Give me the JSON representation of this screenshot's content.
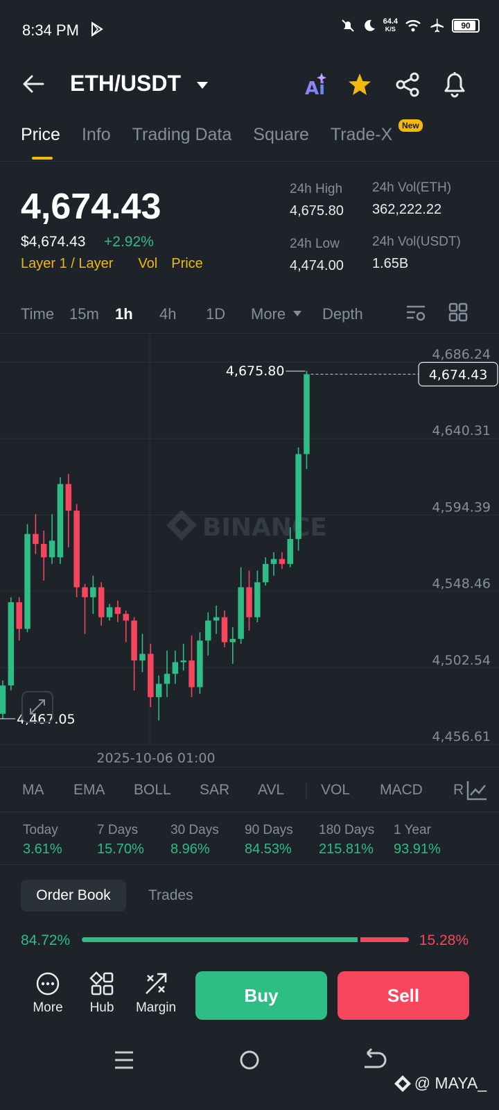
{
  "status_bar": {
    "time": "8:34 PM",
    "speed_value": "64.4",
    "speed_unit": "K/S",
    "battery": "90"
  },
  "header": {
    "pair": "ETH/USDT"
  },
  "tabs": [
    {
      "label": "Price"
    },
    {
      "label": "Info"
    },
    {
      "label": "Trading Data"
    },
    {
      "label": "Square"
    },
    {
      "label": "Trade-X"
    }
  ],
  "new_badge": "New",
  "ticker": {
    "last_price": "4,674.43",
    "usd_price": "$4,674.43",
    "change": "+2.92%",
    "tags": [
      "Layer 1 / Layer",
      "Vol",
      "Price"
    ],
    "high_label": "24h High",
    "high_value": "4,675.80",
    "low_label": "24h Low",
    "low_value": "4,474.00",
    "vol_eth_label": "24h Vol(ETH)",
    "vol_eth_value": "362,222.22",
    "vol_usdt_label": "24h Vol(USDT)",
    "vol_usdt_value": "1.65B"
  },
  "intervals": [
    "Time",
    "15m",
    "1h",
    "4h",
    "1D",
    "More",
    "Depth"
  ],
  "chart_data": {
    "type": "candlestick",
    "y_ticks": [
      "4,686.24",
      "4,640.31",
      "4,594.39",
      "4,548.46",
      "4,502.54",
      "4,456.61"
    ],
    "ylim": [
      4456.61,
      4686.24
    ],
    "x_label": "2025-10-06 01:00",
    "high_marker": "4,675.80",
    "low_marker": "4,467.05",
    "last_price_tag": "4,674.43",
    "watermark": "BINANCE",
    "candles": [
      {
        "o": 4470,
        "c": 4487,
        "h": 4490,
        "l": 4467
      },
      {
        "o": 4487,
        "c": 4537,
        "h": 4540,
        "l": 4484
      },
      {
        "o": 4537,
        "c": 4521,
        "h": 4540,
        "l": 4514
      },
      {
        "o": 4521,
        "c": 4578,
        "h": 4584,
        "l": 4519
      },
      {
        "o": 4578,
        "c": 4572,
        "h": 4590,
        "l": 4566
      },
      {
        "o": 4572,
        "c": 4564,
        "h": 4580,
        "l": 4550
      },
      {
        "o": 4564,
        "c": 4574,
        "h": 4590,
        "l": 4560
      },
      {
        "o": 4564,
        "c": 4608,
        "h": 4612,
        "l": 4560
      },
      {
        "o": 4608,
        "c": 4592,
        "h": 4614,
        "l": 4570
      },
      {
        "o": 4592,
        "c": 4546,
        "h": 4596,
        "l": 4540
      },
      {
        "o": 4546,
        "c": 4540,
        "h": 4548,
        "l": 4518
      },
      {
        "o": 4540,
        "c": 4546,
        "h": 4553,
        "l": 4530
      },
      {
        "o": 4546,
        "c": 4528,
        "h": 4549,
        "l": 4523
      },
      {
        "o": 4528,
        "c": 4534,
        "h": 4536,
        "l": 4526
      },
      {
        "o": 4534,
        "c": 4530,
        "h": 4538,
        "l": 4525
      },
      {
        "o": 4530,
        "c": 4526,
        "h": 4532,
        "l": 4513
      },
      {
        "o": 4526,
        "c": 4502,
        "h": 4528,
        "l": 4484
      },
      {
        "o": 4502,
        "c": 4506,
        "h": 4518,
        "l": 4495
      },
      {
        "o": 4506,
        "c": 4480,
        "h": 4512,
        "l": 4474
      },
      {
        "o": 4480,
        "c": 4488,
        "h": 4493,
        "l": 4466
      },
      {
        "o": 4488,
        "c": 4494,
        "h": 4508,
        "l": 4480
      },
      {
        "o": 4494,
        "c": 4501,
        "h": 4508,
        "l": 4488
      },
      {
        "o": 4501,
        "c": 4502,
        "h": 4512,
        "l": 4496
      },
      {
        "o": 4502,
        "c": 4486,
        "h": 4517,
        "l": 4480
      },
      {
        "o": 4486,
        "c": 4514,
        "h": 4519,
        "l": 4482
      },
      {
        "o": 4514,
        "c": 4526,
        "h": 4531,
        "l": 4505
      },
      {
        "o": 4526,
        "c": 4528,
        "h": 4535,
        "l": 4518
      },
      {
        "o": 4528,
        "c": 4513,
        "h": 4532,
        "l": 4510
      },
      {
        "o": 4513,
        "c": 4515,
        "h": 4522,
        "l": 4500
      },
      {
        "o": 4515,
        "c": 4546,
        "h": 4558,
        "l": 4512
      },
      {
        "o": 4546,
        "c": 4528,
        "h": 4556,
        "l": 4520
      },
      {
        "o": 4528,
        "c": 4549,
        "h": 4556,
        "l": 4525
      },
      {
        "o": 4549,
        "c": 4560,
        "h": 4564,
        "l": 4547
      },
      {
        "o": 4560,
        "c": 4563,
        "h": 4567,
        "l": 4553
      },
      {
        "o": 4563,
        "c": 4560,
        "h": 4567,
        "l": 4557
      },
      {
        "o": 4560,
        "c": 4575,
        "h": 4582,
        "l": 4558
      },
      {
        "o": 4575,
        "c": 4626,
        "h": 4630,
        "l": 4568
      },
      {
        "o": 4626,
        "c": 4674,
        "h": 4676,
        "l": 4617
      }
    ]
  },
  "indicators": [
    "MA",
    "EMA",
    "BOLL",
    "SAR",
    "AVL",
    "VOL",
    "MACD",
    "R"
  ],
  "performance": [
    {
      "label": "Today",
      "value": "3.61%"
    },
    {
      "label": "7 Days",
      "value": "15.70%"
    },
    {
      "label": "30 Days",
      "value": "8.96%"
    },
    {
      "label": "90 Days",
      "value": "84.53%"
    },
    {
      "label": "180 Days",
      "value": "215.81%"
    },
    {
      "label": "1 Year",
      "value": "93.91%"
    }
  ],
  "orderbook": {
    "tab_active": "Order Book",
    "tab_other": "Trades",
    "bid_pct": "84.72%",
    "ask_pct": "15.28%",
    "bid_ratio": 0.8472
  },
  "bottom": {
    "more": "More",
    "hub": "Hub",
    "margin": "Margin",
    "buy": "Buy",
    "sell": "Sell"
  },
  "watermark_tag": "@ MAYA_",
  "colors": {
    "up": "#2ebd85",
    "down": "#f6465d",
    "accent": "#f0b90b",
    "bg": "#1e2329"
  }
}
